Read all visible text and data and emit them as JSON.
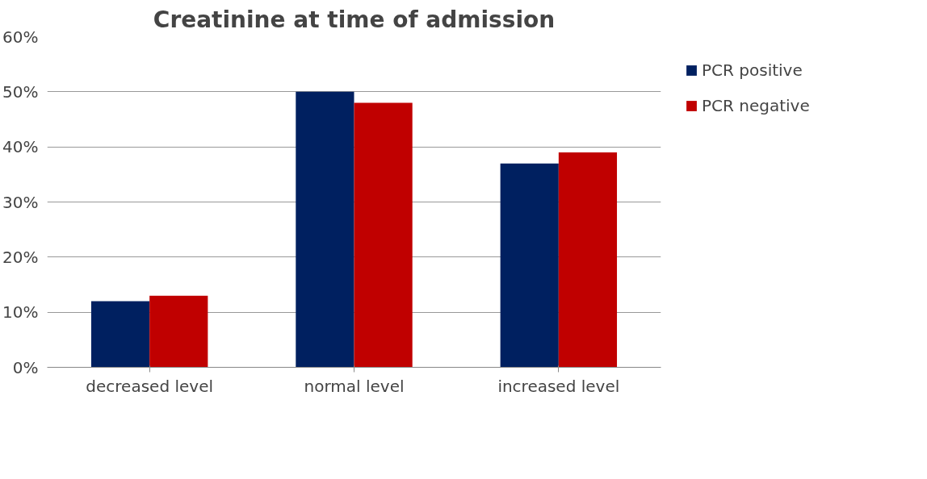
{
  "chart_data": {
    "type": "bar",
    "title": "Creatinine at time of admission",
    "categories": [
      "decreased level",
      "normal level",
      "increased level"
    ],
    "series": [
      {
        "name": "PCR positive",
        "color": "#002060",
        "values": [
          12,
          50,
          37
        ]
      },
      {
        "name": "PCR negative",
        "color": "#c00000",
        "values": [
          13,
          48,
          39
        ]
      }
    ],
    "ylim": [
      0,
      60
    ],
    "yticks": [
      {
        "value": 0,
        "label": "0%"
      },
      {
        "value": 10,
        "label": "10%"
      },
      {
        "value": 20,
        "label": "20%"
      },
      {
        "value": 30,
        "label": "30%"
      },
      {
        "value": 40,
        "label": "40%"
      },
      {
        "value": 50,
        "label": "50%"
      },
      {
        "value": 60,
        "label": "60%"
      }
    ],
    "grid": "y",
    "legend": "right"
  }
}
